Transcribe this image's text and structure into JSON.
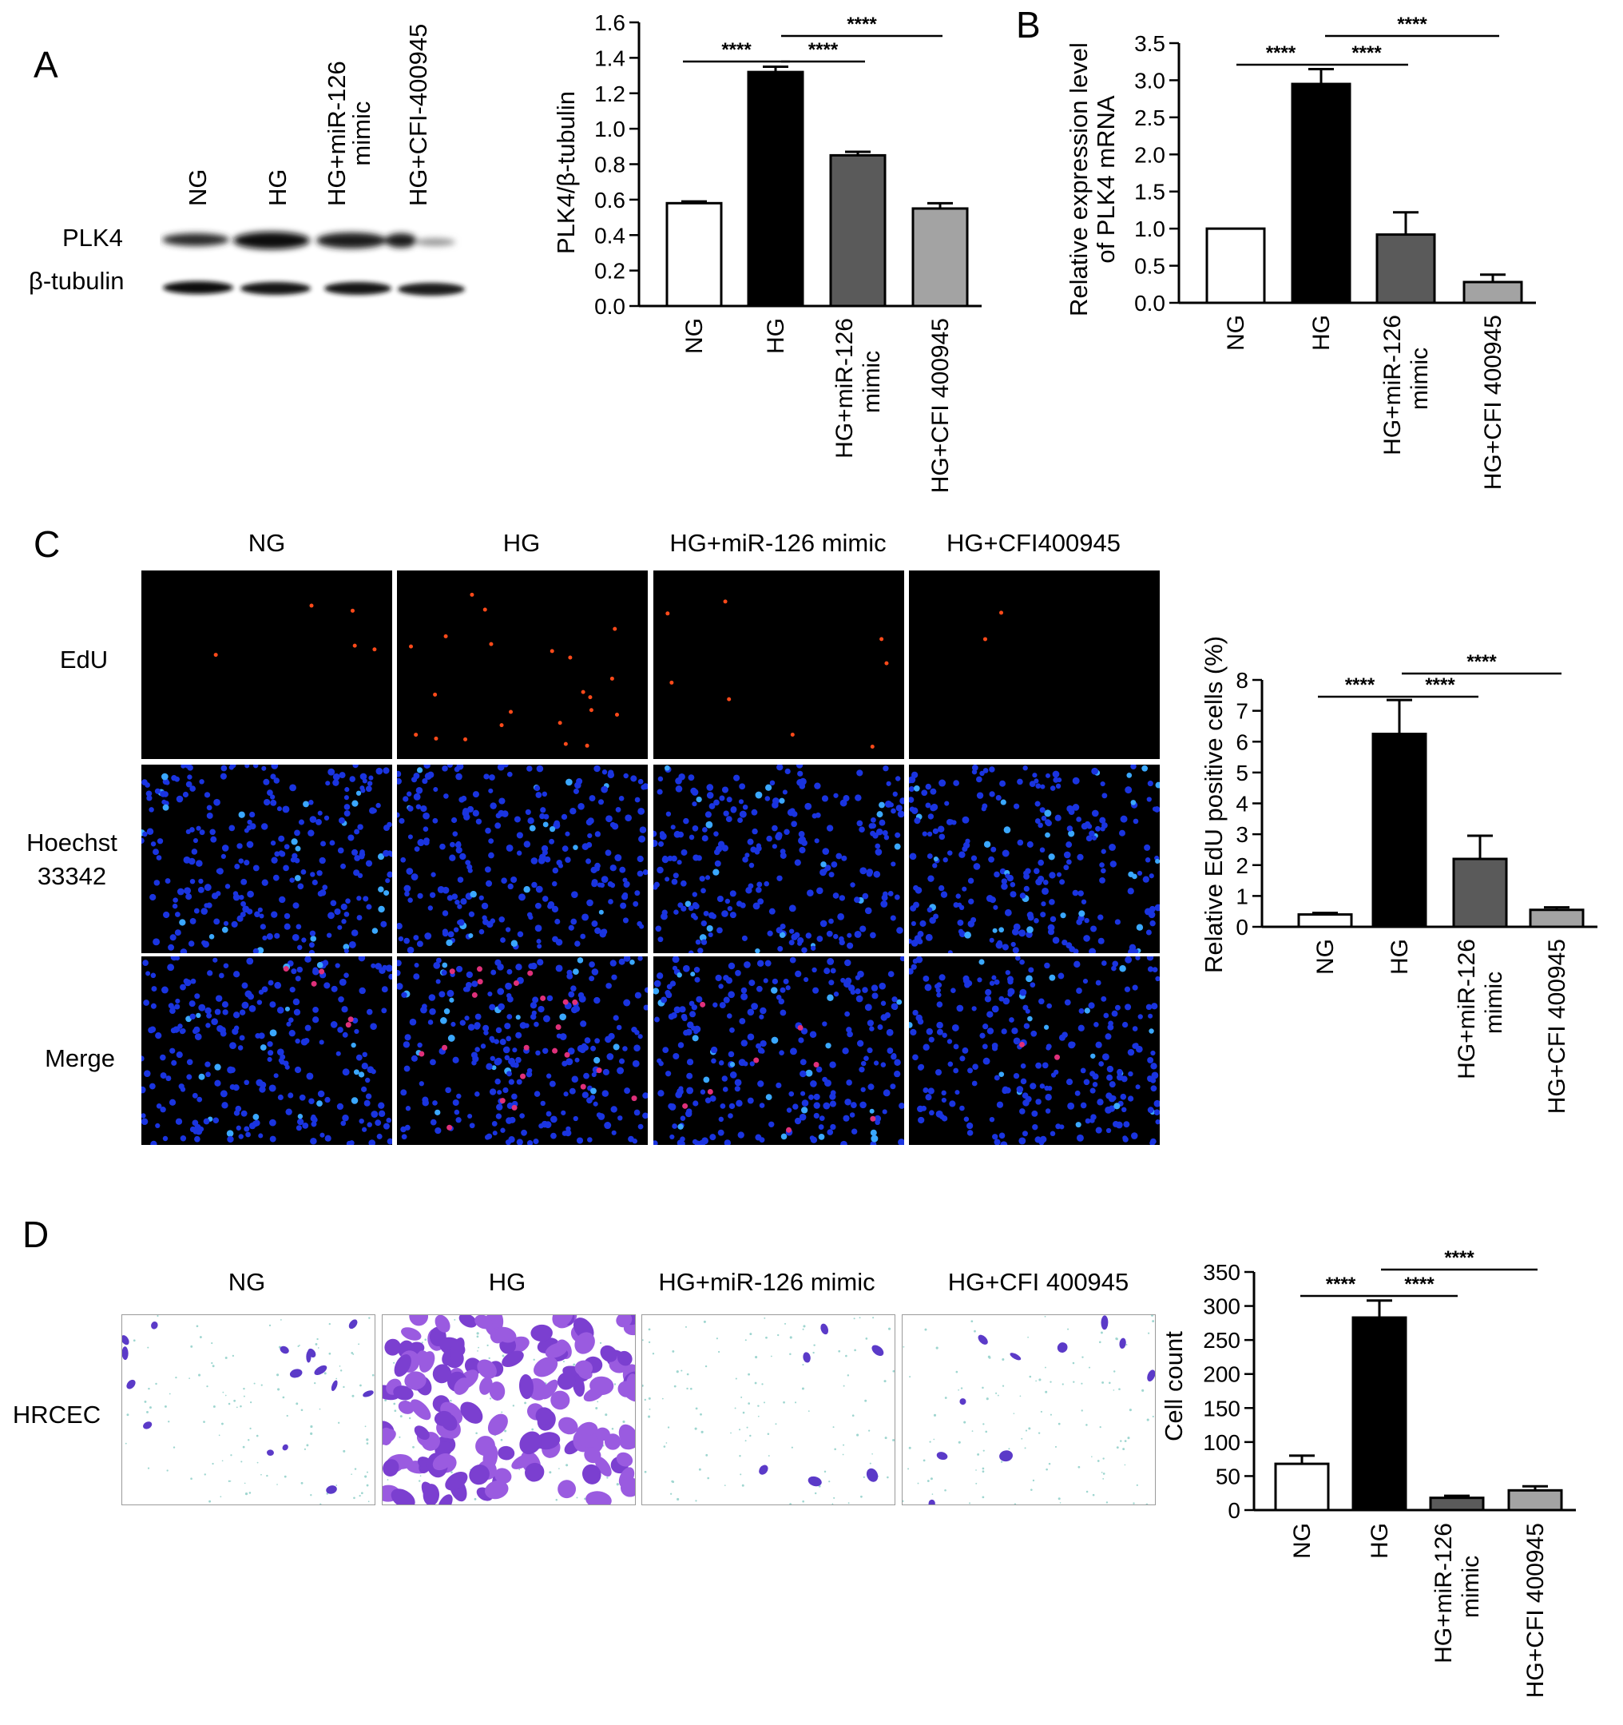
{
  "panels": {
    "A": "A",
    "B": "B",
    "C": "C",
    "D": "D"
  },
  "westernBlot": {
    "lanes": [
      "NG",
      "HG",
      "HG+miR-126\nmimic",
      "HG+CFI-400945"
    ],
    "bands": [
      "PLK4",
      "β-tubulin"
    ]
  },
  "panelC": {
    "columns": [
      "NG",
      "HG",
      "HG+miR-126 mimic",
      "HG+CFI400945"
    ],
    "rows": [
      "EdU",
      "Hoechst\n33342",
      "Merge"
    ]
  },
  "panelD": {
    "columns": [
      "NG",
      "HG",
      "HG+miR-126 mimic",
      "HG+CFI 400945"
    ],
    "rows": [
      "HRCEC"
    ]
  },
  "colors": {
    "NG": "#ffffff",
    "HG": "#000000",
    "HG+miR-126 mimic": "#5a5a5a",
    "HG+CFI 400945": "#a3a3a3"
  },
  "chart_data": [
    {
      "id": "plk4-protein",
      "type": "bar",
      "ylabel": "PLK4/β-tubulin",
      "categories": [
        "NG",
        "HG",
        "HG+miR-126\nmimic",
        "HG+CFI 400945"
      ],
      "values": [
        0.58,
        1.32,
        0.85,
        0.55
      ],
      "errors": [
        0.01,
        0.03,
        0.02,
        0.03
      ],
      "ylim": [
        0,
        1.6
      ],
      "yticks": [
        0.0,
        0.2,
        0.4,
        0.6,
        0.8,
        1.0,
        1.2,
        1.4,
        1.6
      ],
      "tick_decimals": 1,
      "significance": [
        {
          "from": 0,
          "to": 1,
          "label": "****"
        },
        {
          "from": 1,
          "to": 2,
          "label": "****"
        },
        {
          "from": 1,
          "to": 3,
          "label": "****"
        }
      ]
    },
    {
      "id": "plk4-mrna",
      "type": "bar",
      "ylabel": "Relative expression level\nof PLK4 mRNA",
      "categories": [
        "NG",
        "HG",
        "HG+miR-126\nmimic",
        "HG+CFI 400945"
      ],
      "values": [
        1.0,
        2.95,
        0.92,
        0.28
      ],
      "errors": [
        0.0,
        0.2,
        0.3,
        0.1
      ],
      "ylim": [
        0,
        3.5
      ],
      "yticks": [
        0.0,
        0.5,
        1.0,
        1.5,
        2.0,
        2.5,
        3.0,
        3.5
      ],
      "tick_decimals": 1,
      "significance": [
        {
          "from": 0,
          "to": 1,
          "label": "****"
        },
        {
          "from": 1,
          "to": 2,
          "label": "****"
        },
        {
          "from": 1,
          "to": 3,
          "label": "****"
        }
      ]
    },
    {
      "id": "edu",
      "type": "bar",
      "ylabel": "Relative EdU positive cells (%)",
      "categories": [
        "NG",
        "HG",
        "HG+miR-126\nmimic",
        "HG+CFI 400945"
      ],
      "values": [
        0.4,
        6.25,
        2.2,
        0.55
      ],
      "errors": [
        0.05,
        1.1,
        0.75,
        0.08
      ],
      "ylim": [
        0,
        8
      ],
      "yticks": [
        0,
        1,
        2,
        3,
        4,
        5,
        6,
        7,
        8
      ],
      "tick_decimals": 0,
      "significance": [
        {
          "from": 0,
          "to": 1,
          "label": "****"
        },
        {
          "from": 1,
          "to": 2,
          "label": "****"
        },
        {
          "from": 1,
          "to": 3,
          "label": "****"
        }
      ]
    },
    {
      "id": "cell-count",
      "type": "bar",
      "ylabel": "Cell count",
      "categories": [
        "NG",
        "HG",
        "HG+miR-126\nmimic",
        "HG+CFI 400945"
      ],
      "values": [
        68,
        283,
        18,
        29
      ],
      "errors": [
        12,
        25,
        3,
        6
      ],
      "ylim": [
        0,
        350
      ],
      "yticks": [
        0,
        50,
        100,
        150,
        200,
        250,
        300,
        350
      ],
      "tick_decimals": 0,
      "significance": [
        {
          "from": 0,
          "to": 1,
          "label": "****"
        },
        {
          "from": 1,
          "to": 2,
          "label": "****"
        },
        {
          "from": 1,
          "to": 3,
          "label": "****"
        }
      ]
    }
  ]
}
